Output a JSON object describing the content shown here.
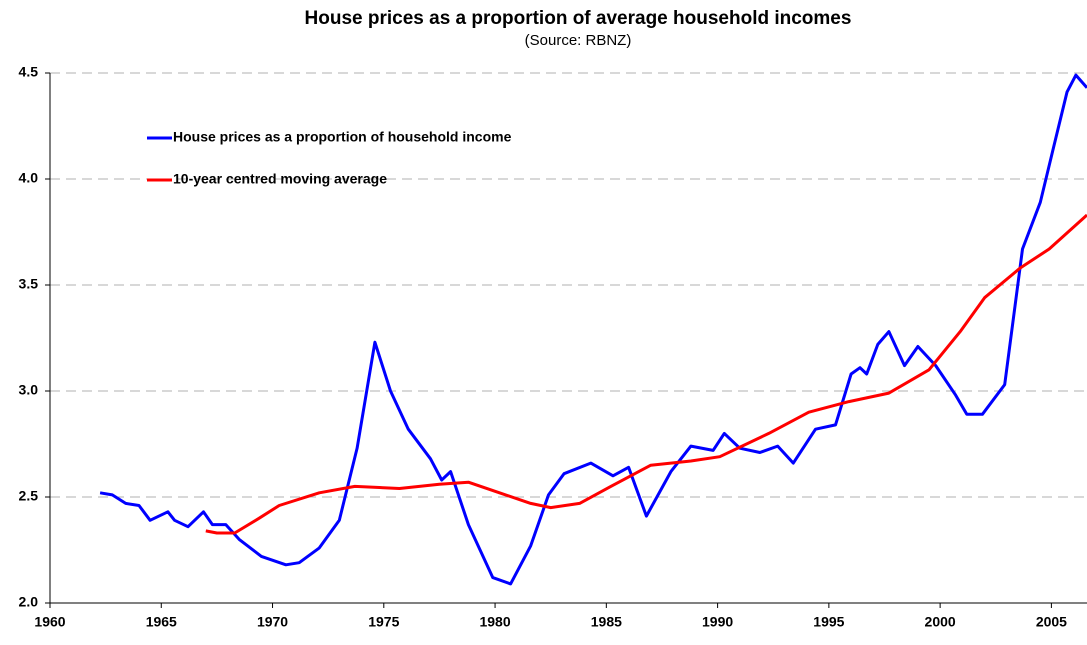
{
  "chart_data": {
    "type": "line",
    "title": "House prices as a proportion of average household incomes",
    "subtitle": "(Source: RBNZ)",
    "xlim": [
      1960,
      2006.6
    ],
    "xticks": [
      1960,
      1965,
      1970,
      1975,
      1980,
      1985,
      1990,
      1995,
      2000,
      2005
    ],
    "ylim": [
      2,
      4.5
    ],
    "yticks": [
      {
        "value": 2,
        "label": "2.0"
      },
      2.5,
      {
        "value": 3,
        "label": "3.0"
      },
      3.5,
      {
        "value": 4,
        "label": "4.0"
      },
      4.5
    ],
    "grid": true,
    "legend": "upper left",
    "series": [
      {
        "name": "House prices as a proportion of household income",
        "color": "#0000ff",
        "x": [
          1962.25,
          1962.8,
          1963.4,
          1964,
          1964.5,
          1965.3,
          1965.6,
          1966.2,
          1966.9,
          1967.3,
          1967.9,
          1968.5,
          1969.5,
          1970.6,
          1971.2,
          1972.1,
          1973,
          1973.8,
          1974.6,
          1975.3,
          1976.1,
          1977.1,
          1977.6,
          1978,
          1978.8,
          1979.9,
          1980.7,
          1981.6,
          1982.4,
          1983.1,
          1984.3,
          1985.3,
          1986,
          1986.8,
          1987.9,
          1988.8,
          1989.8,
          1990.3,
          1991,
          1991.9,
          1992.7,
          1993.4,
          1994.4,
          1995.3,
          1996,
          1996.4,
          1996.7,
          1997.2,
          1997.7,
          1998.4,
          1999,
          1999.8,
          2000.7,
          2001.2,
          2001.9,
          2002.9,
          2003.7,
          2004.5,
          2005.1,
          2005.7,
          2006.1,
          2006.6
        ],
        "values": [
          2.52,
          2.51,
          2.47,
          2.46,
          2.39,
          2.43,
          2.39,
          2.36,
          2.43,
          2.37,
          2.37,
          2.3,
          2.22,
          2.18,
          2.19,
          2.26,
          2.39,
          2.73,
          3.23,
          3.0,
          2.82,
          2.68,
          2.58,
          2.62,
          2.37,
          2.12,
          2.09,
          2.27,
          2.51,
          2.61,
          2.66,
          2.6,
          2.64,
          2.41,
          2.62,
          2.74,
          2.72,
          2.8,
          2.73,
          2.71,
          2.74,
          2.66,
          2.82,
          2.84,
          3.08,
          3.11,
          3.08,
          3.22,
          3.28,
          3.12,
          3.21,
          3.12,
          2.98,
          2.89,
          2.89,
          3.03,
          3.67,
          3.89,
          4.15,
          4.41,
          4.49,
          4.43
        ]
      },
      {
        "name": "10-year centred moving average",
        "color": "#ff0000",
        "x": [
          1967,
          1967.5,
          1968.3,
          1969.4,
          1970.3,
          1972.1,
          1973.7,
          1975.7,
          1977.5,
          1978.8,
          1980.2,
          1981.6,
          1982.5,
          1983.8,
          1985.2,
          1987,
          1988.8,
          1990.1,
          1992.3,
          1994.1,
          1995.9,
          1997.7,
          1999.5,
          2000.9,
          2002,
          2003.6,
          2004.9,
          2006.6
        ],
        "values": [
          2.34,
          2.33,
          2.33,
          2.4,
          2.46,
          2.52,
          2.55,
          2.54,
          2.56,
          2.57,
          2.52,
          2.47,
          2.45,
          2.47,
          2.55,
          2.65,
          2.67,
          2.69,
          2.8,
          2.9,
          2.95,
          2.99,
          3.1,
          3.28,
          3.44,
          3.58,
          3.67,
          3.83
        ]
      }
    ]
  }
}
